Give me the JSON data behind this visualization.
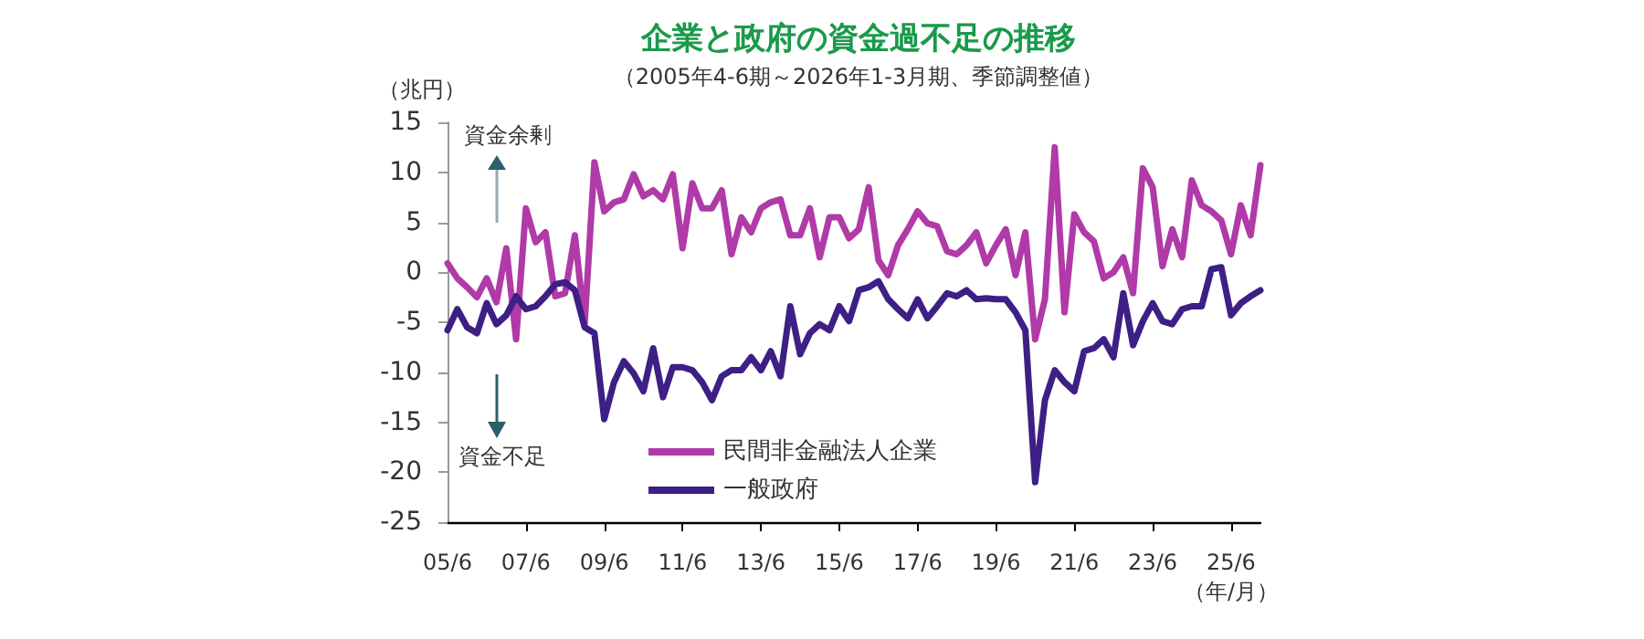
{
  "chart_data": {
    "type": "line",
    "title": "企業と政府の資金過不足の推移",
    "subtitle": "（2005年4-6期～2026年1-3月期、季節調整値）",
    "ylabel": "（兆円）",
    "xlabel": "（年/月）",
    "categories": [
      "05/6",
      null,
      null,
      null,
      null,
      null,
      null,
      null,
      "07/6",
      null,
      null,
      null,
      null,
      null,
      null,
      null,
      "09/6",
      null,
      null,
      null,
      null,
      null,
      null,
      null,
      "11/6",
      null,
      null,
      null,
      null,
      null,
      null,
      null,
      "13/6",
      null,
      null,
      null,
      null,
      null,
      null,
      null,
      "15/6",
      null,
      null,
      null,
      null,
      null,
      null,
      null,
      "17/6",
      null,
      null,
      null,
      null,
      null,
      null,
      null,
      "19/6",
      null,
      null,
      null,
      null,
      null,
      null,
      null,
      "21/6",
      null,
      null,
      null,
      null,
      null,
      null,
      null,
      "23/6",
      null,
      null,
      null,
      null,
      null,
      null,
      null,
      "25/6",
      null,
      null,
      null
    ],
    "series": [
      {
        "name": "民間非金融法人企業",
        "color": "#b03aa8",
        "values": [
          0.9,
          -0.6,
          -1.5,
          -2.5,
          -0.6,
          -3.0,
          2.4,
          -6.7,
          6.4,
          3.0,
          4.0,
          -2.4,
          -2.1,
          3.7,
          -5.2,
          11.0,
          6.1,
          7.0,
          7.3,
          9.8,
          7.6,
          8.2,
          7.3,
          9.8,
          2.4,
          8.9,
          6.4,
          6.4,
          8.2,
          1.8,
          5.5,
          4.0,
          6.4,
          7.0,
          7.3,
          3.7,
          3.7,
          6.4,
          1.5,
          5.5,
          5.5,
          3.4,
          4.3,
          8.5,
          1.2,
          -0.3,
          2.7,
          4.3,
          6.1,
          4.9,
          4.6,
          2.1,
          1.8,
          2.7,
          4.0,
          0.9,
          2.7,
          4.3,
          -0.3,
          4.0,
          -6.7,
          -2.7,
          12.5,
          -4.0,
          5.8,
          4.0,
          3.1,
          -0.6,
          0,
          1.5,
          -2.1,
          10.4,
          8.5,
          0.6,
          4.3,
          1.5,
          9.2,
          6.7,
          6.1,
          5.2,
          1.8,
          6.7,
          3.7,
          10.7
        ]
      },
      {
        "name": "一般政府",
        "color": "#3d1f85",
        "values": [
          -5.8,
          -3.7,
          -5.5,
          -6.1,
          -3.1,
          -5.2,
          -4.3,
          -2.4,
          -3.7,
          -3.4,
          -2.4,
          -1.2,
          -1.0,
          -1.8,
          -5.5,
          -6.1,
          -14.7,
          -11.0,
          -8.9,
          -10.1,
          -11.9,
          -7.6,
          -12.5,
          -9.5,
          -9.5,
          -9.8,
          -11.0,
          -12.8,
          -10.4,
          -9.8,
          -9.8,
          -8.5,
          -9.8,
          -7.9,
          -10.4,
          -3.4,
          -8.2,
          -6.1,
          -5.2,
          -5.8,
          -3.4,
          -4.9,
          -1.8,
          -1.5,
          -0.9,
          -2.7,
          -3.7,
          -4.6,
          -2.7,
          -4.6,
          -3.4,
          -2.1,
          -2.4,
          -1.8,
          -2.7,
          -2.6,
          -2.7,
          -2.7,
          -4.0,
          -5.8,
          -21.0,
          -12.8,
          -9.8,
          -11.0,
          -11.9,
          -7.9,
          -7.6,
          -6.7,
          -8.5,
          -2.1,
          -7.3,
          -4.9,
          -3.1,
          -4.9,
          -5.2,
          -3.7,
          -3.4,
          -3.4,
          0.3,
          0.5,
          -4.3,
          -3.1,
          -2.4,
          -1.8
        ]
      }
    ],
    "ylim": [
      -25,
      15
    ],
    "yticks": [
      -25,
      -20,
      -15,
      -10,
      -5,
      0,
      5,
      10,
      15
    ],
    "grid": false,
    "legend": "bottom",
    "marker": "none",
    "line_style": "solid",
    "annotations": [
      "資金余剰",
      "資金不足"
    ]
  }
}
